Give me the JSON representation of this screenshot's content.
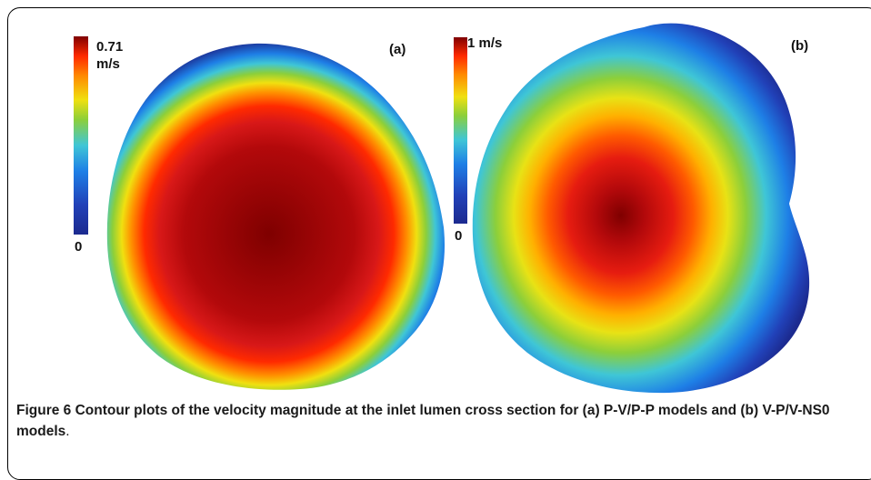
{
  "panels": [
    {
      "id": "a",
      "label": "(a)",
      "scale_max": "0.71",
      "scale_unit": "m/s",
      "scale_min": "0"
    },
    {
      "id": "b",
      "label": "(b)",
      "scale_max": "1 m/s",
      "scale_min": "0"
    }
  ],
  "colors": {
    "jet_stops": [
      "#7f0000",
      "#c81414",
      "#ff2a00",
      "#ff8a00",
      "#f0e010",
      "#8ccf3a",
      "#3fc6d6",
      "#1e7fe6",
      "#2141b8",
      "#1c2a8f"
    ]
  },
  "caption": {
    "figure_label": "Figure 6",
    "text": "Contour plots of the velocity magnitude at the inlet lumen cross section for (a) P-V/P-P models and (b) V-P/V-NS0 models",
    "end": "."
  }
}
